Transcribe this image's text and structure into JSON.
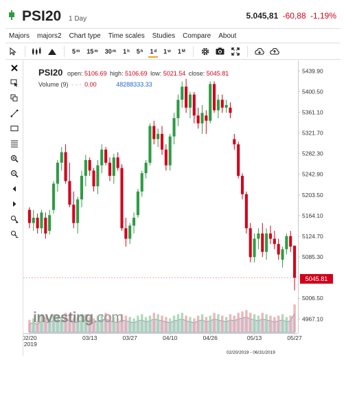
{
  "header": {
    "title": "PSI20",
    "period": "1 Day",
    "price": "5.045,81",
    "change": "-60,88",
    "change_pct": "-1,19%"
  },
  "menu": [
    "Majors",
    "majors2",
    "Chart type",
    "Time scales",
    "Studies",
    "Compare",
    "About"
  ],
  "toolbar": {
    "timeframes": [
      {
        "label": "5",
        "sup": "m",
        "active": false
      },
      {
        "label": "15",
        "sup": "m",
        "active": false
      },
      {
        "label": "30",
        "sup": "m",
        "active": false
      },
      {
        "label": "1",
        "sup": "h",
        "active": false
      },
      {
        "label": "5",
        "sup": "h",
        "active": false
      },
      {
        "label": "1",
        "sup": "d",
        "active": true
      },
      {
        "label": "1",
        "sup": "w",
        "active": false
      },
      {
        "label": "1",
        "sup": "M",
        "active": false
      }
    ]
  },
  "legend": {
    "symbol": "PSI20",
    "open_label": "open:",
    "open": "5106.69",
    "high_label": "high:",
    "high": "5106.69",
    "low_label": "low:",
    "low": "5021.54",
    "close_label": "close:",
    "close": "5045.81",
    "volume_label": "Volume (9)",
    "volume_dims": "◦ ◦ ◦",
    "volume_value": "0.00",
    "volume_ma": "48288333.33"
  },
  "watermark": {
    "main": "investing",
    "suffix": ".com"
  },
  "last_price_tag": "5045.81",
  "date_range": "02/20/2019 - 06/31/2019",
  "colors": {
    "up": "#2e9b44",
    "down": "#d0021b",
    "volume": "#b8c4dc",
    "volume_edge": "#6f82b4"
  },
  "chart_data": {
    "type": "candlestick",
    "ylim": [
      4940,
      5460
    ],
    "y_ticks": [
      "5439.90",
      "5400.50",
      "5361.10",
      "5321.70",
      "5282.30",
      "5242.90",
      "5203.50",
      "5164.10",
      "5124.70",
      "5085.30",
      "5006.50",
      "4967.10"
    ],
    "x_ticks": [
      {
        "label": "02/20",
        "sub": "2019",
        "index": 0
      },
      {
        "label": "03/13",
        "sub": "",
        "index": 15
      },
      {
        "label": "03/27",
        "sub": "",
        "index": 25
      },
      {
        "label": "04/10",
        "sub": "",
        "index": 35
      },
      {
        "label": "04/26",
        "sub": "",
        "index": 45
      },
      {
        "label": "05/13",
        "sub": "",
        "index": 56
      },
      {
        "label": "05/27",
        "sub": "",
        "index": 66
      }
    ],
    "last_close": 5045.81,
    "candles": [
      [
        5175,
        5180,
        5140,
        5150
      ],
      [
        5150,
        5175,
        5135,
        5160
      ],
      [
        5160,
        5168,
        5130,
        5140
      ],
      [
        5140,
        5175,
        5130,
        5170
      ],
      [
        5160,
        5170,
        5120,
        5130
      ],
      [
        5135,
        5175,
        5128,
        5165
      ],
      [
        5175,
        5230,
        5168,
        5225
      ],
      [
        5225,
        5270,
        5210,
        5265
      ],
      [
        5265,
        5295,
        5250,
        5285
      ],
      [
        5285,
        5300,
        5225,
        5230
      ],
      [
        5230,
        5265,
        5180,
        5185
      ],
      [
        5185,
        5210,
        5140,
        5150
      ],
      [
        5150,
        5200,
        5130,
        5195
      ],
      [
        5195,
        5250,
        5180,
        5240
      ],
      [
        5240,
        5280,
        5220,
        5270
      ],
      [
        5270,
        5275,
        5240,
        5250
      ],
      [
        5250,
        5255,
        5210,
        5220
      ],
      [
        5220,
        5270,
        5205,
        5260
      ],
      [
        5260,
        5300,
        5245,
        5290
      ],
      [
        5290,
        5295,
        5260,
        5265
      ],
      [
        5265,
        5275,
        5230,
        5240
      ],
      [
        5240,
        5282,
        5225,
        5275
      ],
      [
        5275,
        5285,
        5250,
        5255
      ],
      [
        5255,
        5262,
        5135,
        5140
      ],
      [
        5140,
        5160,
        5105,
        5120
      ],
      [
        5120,
        5150,
        5110,
        5145
      ],
      [
        5145,
        5170,
        5130,
        5160
      ],
      [
        5165,
        5215,
        5160,
        5210
      ],
      [
        5210,
        5250,
        5200,
        5245
      ],
      [
        5245,
        5270,
        5235,
        5265
      ],
      [
        5265,
        5340,
        5260,
        5335
      ],
      [
        5335,
        5345,
        5300,
        5310
      ],
      [
        5310,
        5330,
        5295,
        5320
      ],
      [
        5320,
        5335,
        5280,
        5290
      ],
      [
        5290,
        5300,
        5250,
        5260
      ],
      [
        5260,
        5320,
        5250,
        5315
      ],
      [
        5315,
        5360,
        5300,
        5350
      ],
      [
        5350,
        5395,
        5335,
        5385
      ],
      [
        5385,
        5420,
        5370,
        5410
      ],
      [
        5410,
        5425,
        5360,
        5370
      ],
      [
        5370,
        5400,
        5350,
        5395
      ],
      [
        5395,
        5400,
        5340,
        5355
      ],
      [
        5355,
        5370,
        5330,
        5340
      ],
      [
        5340,
        5375,
        5320,
        5360
      ],
      [
        5355,
        5365,
        5320,
        5345
      ],
      [
        5345,
        5420,
        5340,
        5415
      ],
      [
        5415,
        5420,
        5360,
        5365
      ],
      [
        5365,
        5395,
        5350,
        5385
      ],
      [
        5385,
        5395,
        5360,
        5370
      ],
      [
        5370,
        5385,
        5360,
        5375
      ],
      [
        5370,
        5380,
        5350,
        5360
      ],
      [
        5310,
        5320,
        5290,
        5300
      ],
      [
        5300,
        5305,
        5235,
        5240
      ],
      [
        5240,
        5245,
        5195,
        5205
      ],
      [
        5205,
        5210,
        5130,
        5140
      ],
      [
        5140,
        5150,
        5075,
        5085
      ],
      [
        5085,
        5130,
        5075,
        5120
      ],
      [
        5120,
        5140,
        5100,
        5130
      ],
      [
        5130,
        5150,
        5085,
        5095
      ],
      [
        5095,
        5140,
        5080,
        5130
      ],
      [
        5130,
        5145,
        5110,
        5120
      ],
      [
        5120,
        5135,
        5100,
        5110
      ],
      [
        5110,
        5120,
        5080,
        5090
      ],
      [
        5080,
        5105,
        5065,
        5100
      ],
      [
        5100,
        5130,
        5090,
        5125
      ],
      [
        5125,
        5135,
        5095,
        5105
      ],
      [
        5106.69,
        5106.69,
        5021.54,
        5045.81
      ]
    ],
    "volumes": [
      9,
      10,
      8,
      12,
      11,
      10,
      13,
      12,
      11,
      14,
      12,
      10,
      11,
      12,
      13,
      11,
      10,
      12,
      13,
      14,
      12,
      11,
      10,
      13,
      12,
      11,
      10,
      12,
      13,
      11,
      12,
      14,
      13,
      12,
      11,
      10,
      12,
      13,
      14,
      12,
      11,
      10,
      12,
      13,
      11,
      12,
      14,
      13,
      12,
      11,
      13,
      12,
      14,
      15,
      16,
      14,
      13,
      12,
      14,
      13,
      12,
      11,
      12,
      13,
      11,
      12,
      20
    ]
  }
}
